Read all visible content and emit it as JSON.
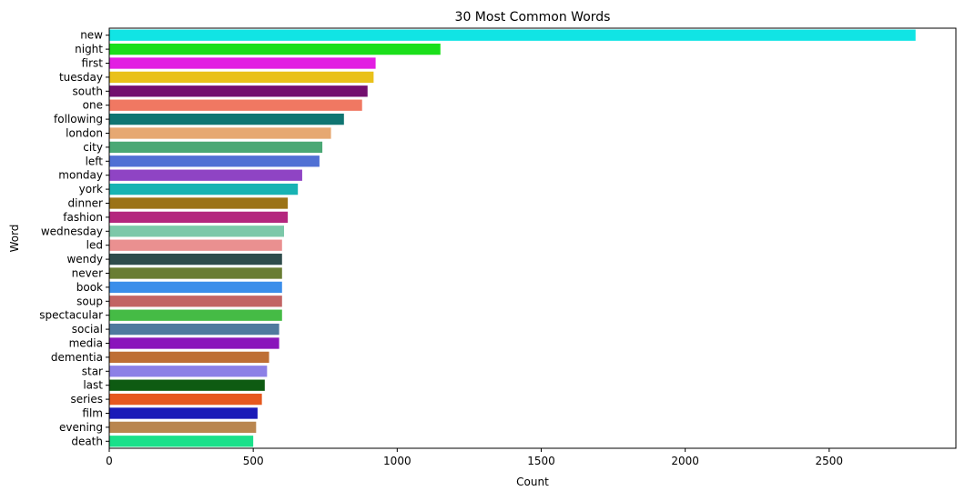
{
  "chart_data": {
    "type": "bar",
    "orientation": "horizontal",
    "title": "30 Most Common Words",
    "xlabel": "Count",
    "ylabel": "Word",
    "xlim": [
      0,
      2940
    ],
    "xticks": [
      0,
      500,
      1000,
      1500,
      2000,
      2500
    ],
    "grid": false,
    "categories": [
      "new",
      "night",
      "first",
      "tuesday",
      "south",
      "one",
      "following",
      "london",
      "city",
      "left",
      "monday",
      "york",
      "dinner",
      "fashion",
      "wednesday",
      "led",
      "wendy",
      "never",
      "book",
      "soup",
      "spectacular",
      "social",
      "media",
      "dementia",
      "star",
      "last",
      "series",
      "film",
      "evening",
      "death"
    ],
    "values": [
      2800,
      1150,
      925,
      918,
      897,
      878,
      815,
      770,
      740,
      730,
      670,
      655,
      620,
      620,
      607,
      600,
      600,
      600,
      600,
      600,
      600,
      590,
      590,
      555,
      548,
      540,
      530,
      515,
      510,
      500
    ],
    "colors": [
      "#11e4e4",
      "#1adf1a",
      "#e21ee2",
      "#e9c11a",
      "#730e6e",
      "#f07862",
      "#107572",
      "#e6a872",
      "#4aa875",
      "#5070d4",
      "#8f44c4",
      "#18b3b3",
      "#9b7316",
      "#b4267e",
      "#7cc8a9",
      "#ea9090",
      "#2f4c4c",
      "#697d33",
      "#3b8eea",
      "#c26464",
      "#45bb45",
      "#4f7a9e",
      "#8a15bb",
      "#be6f35",
      "#8c80e6",
      "#0e5b12",
      "#e6581f",
      "#1a1ab8",
      "#b9864f",
      "#1ae08a"
    ]
  }
}
